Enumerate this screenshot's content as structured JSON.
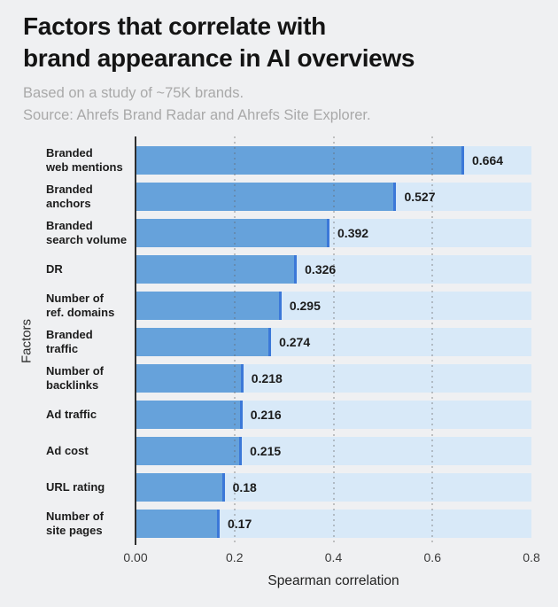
{
  "header": {
    "title_lines": [
      "Factors that correlate with",
      "brand appearance in AI overviews"
    ],
    "subtitle_lines": [
      "Based on a study of ~75K brands.",
      "Source: Ahrefs Brand Radar and Ahrefs Site Explorer."
    ]
  },
  "chart_data": {
    "type": "bar",
    "orientation": "horizontal",
    "title": "Factors that correlate with brand appearance in AI overviews",
    "subtitle": "Based on a study of ~75K brands. Source: Ahrefs Brand Radar and Ahrefs Site Explorer.",
    "categories": [
      "Branded\nweb mentions",
      "Branded\nanchors",
      "Branded\nsearch volume",
      "DR",
      "Number of\nref. domains",
      "Branded\ntraffic",
      "Number of\nbacklinks",
      "Ad traffic",
      "Ad cost",
      "URL rating",
      "Number of\nsite pages"
    ],
    "values": [
      0.664,
      0.527,
      0.392,
      0.326,
      0.295,
      0.274,
      0.218,
      0.216,
      0.215,
      0.18,
      0.17
    ],
    "value_labels": [
      "0.664",
      "0.527",
      "0.392",
      "0.326",
      "0.295",
      "0.274",
      "0.218",
      "0.216",
      "0.215",
      "0.18",
      "0.17"
    ],
    "xlabel": "Spearman correlation",
    "ylabel": "Factors",
    "xlim": [
      0,
      0.8
    ],
    "xticks": [
      {
        "value": 0,
        "label": "0.00"
      },
      {
        "value": 0.2,
        "label": "0.2"
      },
      {
        "value": 0.4,
        "label": "0.4"
      },
      {
        "value": 0.6,
        "label": "0.6"
      },
      {
        "value": 0.8,
        "label": "0.8"
      }
    ],
    "grid_ticks": [
      0.2,
      0.4,
      0.6
    ],
    "grid": "vertical-dotted",
    "legend": "none",
    "colors": {
      "bar_fill": "#66a2db",
      "bar_edge": "#3b78d8",
      "track": "#d8e9f8",
      "axis_line": "#2e2e2e",
      "grid_line": "#646464",
      "title_text": "#141414",
      "subtitle_text": "#a9a9a9",
      "label_text": "#1c1c1c",
      "tick_text": "#3a3a3a",
      "background": "#eff0f2"
    }
  }
}
